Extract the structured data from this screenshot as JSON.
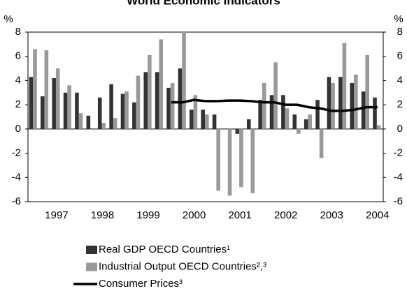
{
  "chart_data": {
    "type": "bar",
    "title": "World Economic Indicators",
    "y_unit_label": "%",
    "categories": [
      null,
      null,
      "1997",
      null,
      null,
      null,
      "1998",
      null,
      null,
      null,
      "1999",
      null,
      null,
      null,
      "2000",
      null,
      null,
      null,
      "2001",
      null,
      null,
      null,
      "2002",
      null,
      null,
      null,
      "2003",
      null,
      null,
      null,
      "2004"
    ],
    "series": [
      {
        "name": "Real GDP OECD Countries¹",
        "color": "#333333",
        "kind": "bar",
        "values": [
          4.3,
          2.7,
          4.2,
          3.0,
          3.0,
          1.1,
          2.6,
          3.7,
          2.9,
          2.2,
          4.7,
          4.7,
          3.4,
          5.0,
          1.6,
          1.6,
          1.2,
          0,
          -0.4,
          0.8,
          2.4,
          2.8,
          2.8,
          1.2,
          0.8,
          2.4,
          4.3,
          4.3,
          3.8,
          3.1,
          2.6
        ]
      },
      {
        "name": "Industrial Output OECD Countries²,³",
        "color": "#999999",
        "kind": "bar",
        "values": [
          6.6,
          6.5,
          5.0,
          3.6,
          1.3,
          0,
          0.5,
          0.9,
          3.1,
          4.4,
          6.1,
          7.4,
          3.8,
          8.0,
          2.8,
          1.2,
          -5.1,
          -5.5,
          -4.8,
          -5.3,
          3.8,
          5.5,
          1.7,
          -0.4,
          1.2,
          -2.4,
          3.8,
          7.1,
          4.5,
          6.1,
          0.3
        ]
      },
      {
        "name": "Consumer Prices³",
        "color": "#000000",
        "kind": "line",
        "values": [
          null,
          null,
          null,
          null,
          null,
          null,
          null,
          null,
          null,
          null,
          null,
          null,
          2.2,
          2.2,
          2.4,
          2.3,
          2.3,
          2.35,
          2.35,
          2.3,
          2.2,
          2.2,
          2.0,
          2.0,
          1.8,
          1.7,
          1.5,
          1.5,
          1.6,
          1.8,
          1.8
        ]
      }
    ],
    "ylim": [
      -6,
      8
    ],
    "yticks": [
      -6,
      -4,
      -2,
      0,
      2,
      4,
      6,
      8
    ],
    "grid": false
  }
}
